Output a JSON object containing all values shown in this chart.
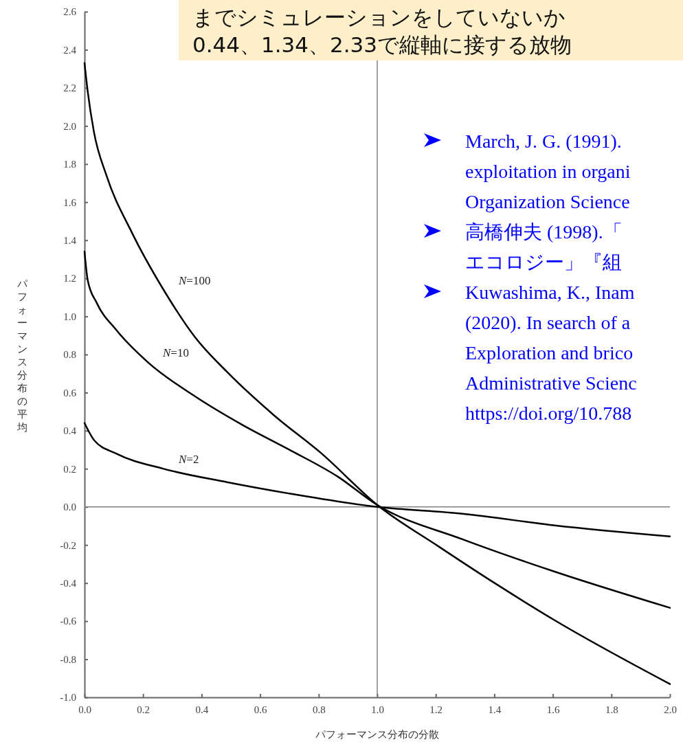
{
  "chart_data": {
    "type": "line",
    "xlabel": "パフォーマンス分布の分散",
    "ylabel": "パフォーマンス分布の平均",
    "xlim": [
      0,
      2.0
    ],
    "xticks": [
      {
        "value": 0,
        "label": "0.0"
      },
      0.2,
      0.4,
      0.6,
      0.8,
      {
        "value": 1,
        "label": "1.0"
      },
      1.2,
      1.4,
      1.6,
      1.8,
      {
        "value": 2,
        "label": "2.0"
      }
    ],
    "ylim": [
      -1.0,
      2.6
    ],
    "yticks": [
      {
        "value": -1,
        "label": "-1.0"
      },
      -0.8,
      -0.6,
      -0.4,
      -0.2,
      {
        "value": 0,
        "label": "0.0"
      },
      0.2,
      0.4,
      0.6,
      0.8,
      {
        "value": 1,
        "label": "1.0"
      },
      1.2,
      1.4,
      1.6,
      1.8,
      {
        "value": 2,
        "label": "2.0"
      },
      2.2,
      2.4,
      2.6
    ],
    "ref_lines": [
      {
        "axis": "x",
        "value": 1,
        "color": "#808080"
      },
      {
        "axis": "y",
        "value": 0,
        "color": "#808080"
      }
    ],
    "series": [
      {
        "name": "N=100",
        "color": "#000000",
        "x": [
          0,
          0.011,
          0.032,
          0.075,
          0.162,
          0.27,
          0.378,
          0.486,
          0.648,
          0.81,
          1.0,
          1.207,
          1.401,
          1.606,
          2.0
        ],
        "values": [
          2.33,
          2.18,
          1.97,
          1.74,
          1.44,
          1.14,
          0.89,
          0.71,
          0.48,
          0.28,
          0.01,
          -0.205,
          -0.4,
          -0.595,
          -0.93
        ]
      },
      {
        "name": "N=10",
        "color": "#000000",
        "x": [
          0,
          0.011,
          0.042,
          0.108,
          0.216,
          0.378,
          0.54,
          0.7,
          0.864,
          1.0,
          1.291,
          1.606,
          2.0
        ],
        "values": [
          1.34,
          1.19,
          1.07,
          0.93,
          0.76,
          0.58,
          0.43,
          0.3,
          0.16,
          0.01,
          -0.17,
          -0.34,
          -0.53
        ]
      },
      {
        "name": "N=2",
        "color": "#000000",
        "x": [
          0,
          0.033,
          0.108,
          0.27,
          0.486,
          0.7,
          1.0,
          1.291,
          1.606,
          2.0
        ],
        "values": [
          0.44,
          0.35,
          0.28,
          0.2,
          0.13,
          0.07,
          0.0,
          -0.036,
          -0.097,
          -0.155
        ]
      }
    ],
    "annotations": [
      "までシミュレーションをしていないか",
      "0.44、1.34、2.33で縦軸に接する放物",
      "March, J. G. (1991).",
      "exploitation in organi",
      "Organization Science",
      "高橋伸夫 (1998).「",
      "エコロジー」『組",
      "Kuwashima, K., Inam",
      "(2020). In search of a",
      "Exploration and brico",
      "Administrative Scienc",
      "https://doi.org/10.788"
    ]
  }
}
